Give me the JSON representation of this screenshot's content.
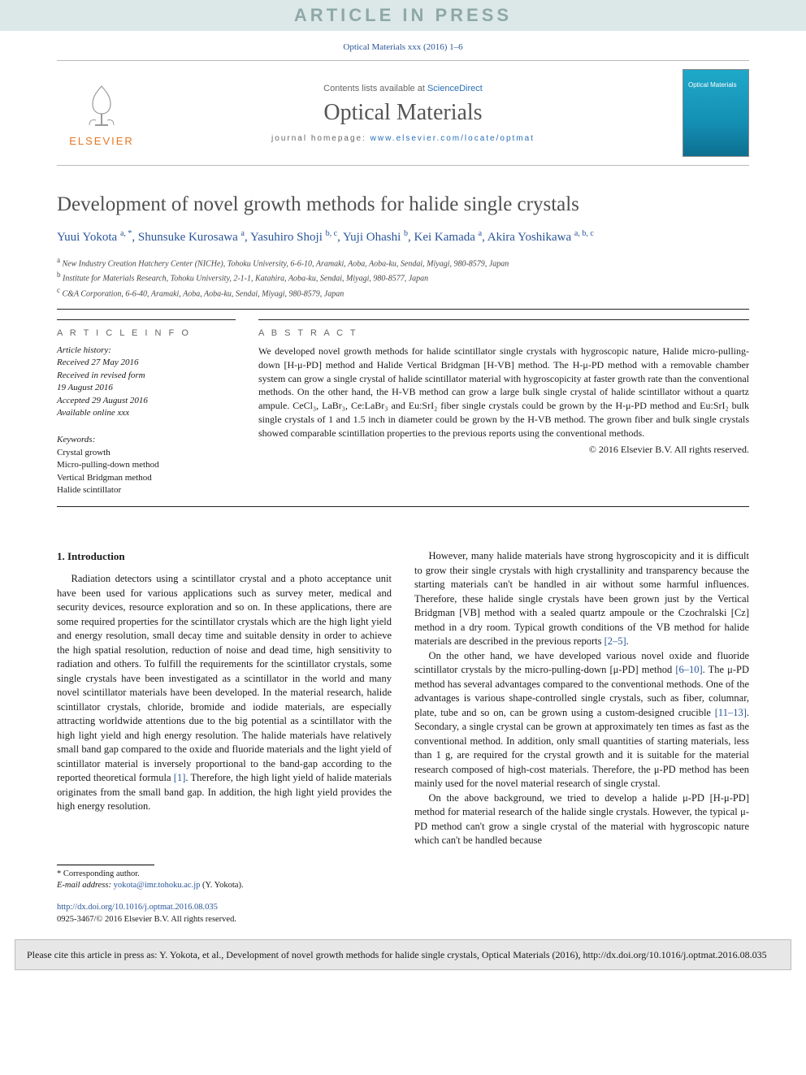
{
  "banner": {
    "press": "ARTICLE IN PRESS"
  },
  "header": {
    "citation_top": "Optical Materials xxx (2016) 1–6",
    "contents_prefix": "Contents lists available at ",
    "contents_link": "ScienceDirect",
    "journal_name": "Optical Materials",
    "homepage_prefix": "journal homepage: ",
    "homepage_url": "www.elsevier.com/locate/optmat",
    "elsevier": "ELSEVIER",
    "cover_title": "Optical Materials"
  },
  "article": {
    "title": "Development of novel growth methods for halide single crystals",
    "authors_html": "Yuui Yokota <sup>a, *</sup>, Shunsuke Kurosawa <sup>a</sup>, Yasuhiro Shoji <sup>b, c</sup>, Yuji Ohashi <sup>b</sup>, Kei Kamada <sup>a</sup>, Akira Yoshikawa <sup>a, b, c</sup>",
    "affiliations": [
      {
        "sup": "a",
        "text": "New Industry Creation Hatchery Center (NICHe), Tohoku University, 6-6-10, Aramaki, Aoba, Aoba-ku, Sendai, Miyagi, 980-8579, Japan"
      },
      {
        "sup": "b",
        "text": "Institute for Materials Research, Tohoku University, 2-1-1, Katahira, Aoba-ku, Sendai, Miyagi, 980-8577, Japan"
      },
      {
        "sup": "c",
        "text": "C&A Corporation, 6-6-40, Aramaki, Aoba, Aoba-ku, Sendai, Miyagi, 980-8579, Japan"
      }
    ]
  },
  "info": {
    "heading": "A R T I C L E  I N F O",
    "history_label": "Article history:",
    "history": [
      "Received 27 May 2016",
      "Received in revised form",
      "19 August 2016",
      "Accepted 29 August 2016",
      "Available online xxx"
    ],
    "keywords_label": "Keywords:",
    "keywords": [
      "Crystal growth",
      "Micro-pulling-down method",
      "Vertical Bridgman method",
      "Halide scintillator"
    ]
  },
  "abstract": {
    "heading": "A B S T R A C T",
    "text": "We developed novel growth methods for halide scintillator single crystals with hygroscopic nature, Halide micro-pulling-down [H-μ-PD] method and Halide Vertical Bridgman [H-VB] method. The H-μ-PD method with a removable chamber system can grow a single crystal of halide scintillator material with hygroscopicity at faster growth rate than the conventional methods. On the other hand, the H-VB method can grow a large bulk single crystal of halide scintillator without a quartz ampule. CeCl₃, LaBr₃, Ce:LaBr₃ and Eu:SrI₂ fiber single crystals could be grown by the H-μ-PD method and Eu:SrI₂ bulk single crystals of 1 and 1.5 inch in diameter could be grown by the H-VB method. The grown fiber and bulk single crystals showed comparable scintillation properties to the previous reports using the conventional methods.",
    "copyright": "© 2016 Elsevier B.V. All rights reserved."
  },
  "body": {
    "section_title": "1. Introduction",
    "left_p1": "Radiation detectors using a scintillator crystal and a photo acceptance unit have been used for various applications such as survey meter, medical and security devices, resource exploration and so on. In these applications, there are some required properties for the scintillator crystals which are the high light yield and energy resolution, small decay time and suitable density in order to achieve the high spatial resolution, reduction of noise and dead time, high sensitivity to radiation and others. To fulfill the requirements for the scintillator crystals, some single crystals have been investigated as a scintillator in the world and many novel scintillator materials have been developed. In the material research, halide scintillator crystals, chloride, bromide and iodide materials, are especially attracting worldwide attentions due to the big potential as a scintillator with the high light yield and high energy resolution. The halide materials have relatively small band gap compared to the oxide and fluoride materials and the light yield of scintillator material is inversely proportional to the band-gap according to the reported theoretical formula ",
    "left_ref1": "[1]",
    "left_p1_tail": ". Therefore, the high light yield of halide materials originates from the small band gap. In addition, the high light yield provides the high energy resolution.",
    "right_p1": "However, many halide materials have strong hygroscopicity and it is difficult to grow their single crystals with high crystallinity and transparency because the starting materials can't be handled in air without some harmful influences. Therefore, these halide single crystals have been grown just by the Vertical Bridgman [VB] method with a sealed quartz ampoule or the Czochralski [Cz] method in a dry room. Typical growth conditions of the VB method for halide materials are described in the previous reports ",
    "right_ref1": "[2–5]",
    "right_p1_tail": ".",
    "right_p2": "On the other hand, we have developed various novel oxide and fluoride scintillator crystals by the micro-pulling-down [μ-PD] method ",
    "right_ref2": "[6–10]",
    "right_p2_mid": ". The μ-PD method has several advantages compared to the conventional methods. One of the advantages is various shape-controlled single crystals, such as fiber, columnar, plate, tube and so on, can be grown using a custom-designed crucible ",
    "right_ref3": "[11–13]",
    "right_p2_tail": ". Secondary, a single crystal can be grown at approximately ten times as fast as the conventional method. In addition, only small quantities of starting materials, less than 1 g, are required for the crystal growth and it is suitable for the material research composed of high-cost materials. Therefore, the μ-PD method has been mainly used for the novel material research of single crystal.",
    "right_p3": "On the above background, we tried to develop a halide μ-PD [H-μ-PD] method for material research of the halide single crystals. However, the typical μ-PD method can't grow a single crystal of the material with hygroscopic nature which can't be handled because"
  },
  "footer": {
    "corr_label": "* Corresponding author.",
    "email_label": "E-mail address: ",
    "email": "yokota@imr.tohoku.ac.jp",
    "email_tail": " (Y. Yokota).",
    "doi_url": "http://dx.doi.org/10.1016/j.optmat.2016.08.035",
    "issn_line": "0925-3467/© 2016 Elsevier B.V. All rights reserved."
  },
  "cite": {
    "text": "Please cite this article in press as: Y. Yokota, et al., Development of novel growth methods for halide single crystals, Optical Materials (2016), http://dx.doi.org/10.1016/j.optmat.2016.08.035"
  },
  "colors": {
    "link": "#2a5599",
    "banner_bg": "#dce8e8",
    "banner_fg": "#8fa8a8",
    "elsevier_orange": "#e87722"
  }
}
